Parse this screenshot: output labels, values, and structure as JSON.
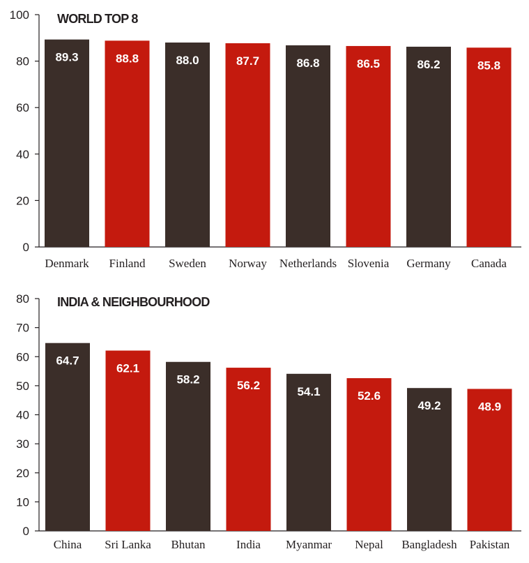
{
  "colors": {
    "dark": "#3b2e29",
    "red": "#c41a0e",
    "axis": "#231f20",
    "label": "#ffffff"
  },
  "chart_data": [
    {
      "type": "bar",
      "title": "WORLD TOP 8",
      "categories": [
        "Denmark",
        "Finland",
        "Sweden",
        "Norway",
        "Netherlands",
        "Slovenia",
        "Germany",
        "Canada"
      ],
      "values": [
        89.3,
        88.8,
        88.0,
        87.7,
        86.8,
        86.5,
        86.2,
        85.8
      ],
      "value_labels": [
        "89.3",
        "88.8",
        "88.0",
        "87.7",
        "86.8",
        "86.5",
        "86.2",
        "85.8"
      ],
      "bar_colors": [
        "dark",
        "red",
        "dark",
        "red",
        "dark",
        "red",
        "dark",
        "red"
      ],
      "ylim": [
        0,
        100
      ],
      "yticks": [
        "0",
        "20",
        "40",
        "60",
        "80",
        "100"
      ],
      "grid": false
    },
    {
      "type": "bar",
      "title": "INDIA & NEIGHBOURHOOD",
      "categories": [
        "China",
        "Sri Lanka",
        "Bhutan",
        "India",
        "Myanmar",
        "Nepal",
        "Bangladesh",
        "Pakistan"
      ],
      "values": [
        64.7,
        62.1,
        58.2,
        56.2,
        54.1,
        52.6,
        49.2,
        48.9
      ],
      "value_labels": [
        "64.7",
        "62.1",
        "58.2",
        "56.2",
        "54.1",
        "52.6",
        "49.2",
        "48.9"
      ],
      "bar_colors": [
        "dark",
        "red",
        "dark",
        "red",
        "dark",
        "red",
        "dark",
        "red"
      ],
      "ylim": [
        0,
        80
      ],
      "yticks": [
        "0",
        "10",
        "20",
        "30",
        "40",
        "50",
        "60",
        "70",
        "80"
      ],
      "grid": false
    }
  ]
}
